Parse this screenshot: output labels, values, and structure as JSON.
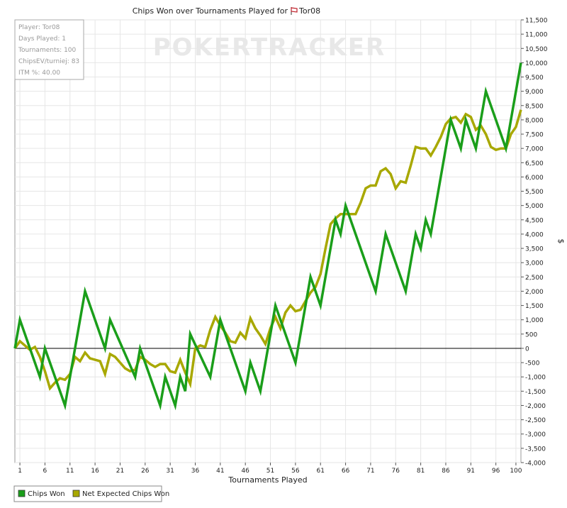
{
  "chart_data": {
    "type": "line",
    "title": "Chips Won over Tournaments Played for",
    "title_player": "Tor08",
    "xlabel": "Tournaments Played",
    "ylabel": "$",
    "xlim": [
      0,
      100
    ],
    "ylim": [
      -4000,
      11500
    ],
    "x_ticks": [
      1,
      6,
      11,
      16,
      21,
      26,
      31,
      36,
      41,
      46,
      51,
      56,
      61,
      66,
      71,
      76,
      81,
      86,
      91,
      96,
      100
    ],
    "y_ticks": [
      -4000,
      -3500,
      -3000,
      -2500,
      -2000,
      -1500,
      -1000,
      -500,
      0,
      500,
      1000,
      1500,
      2000,
      2500,
      3000,
      3500,
      4000,
      4500,
      5000,
      5500,
      6000,
      6500,
      7000,
      7500,
      8000,
      8500,
      9000,
      9500,
      10000,
      10500,
      11000,
      11500
    ],
    "y_tick_labels": [
      "-4,000",
      "-3,500",
      "-3,000",
      "-2,500",
      "-2,000",
      "-1,500",
      "-1,000",
      "-500",
      "0",
      "500",
      "1,000",
      "1,500",
      "2,000",
      "2,500",
      "3,000",
      "3,500",
      "4,000",
      "4,500",
      "5,000",
      "5,500",
      "6,000",
      "6,500",
      "7,000",
      "7,500",
      "8,000",
      "8,500",
      "9,000",
      "9,500",
      "10,000",
      "10,500",
      "11,000",
      "11,500"
    ],
    "grid": true,
    "legend_position": "bottom-left",
    "watermark": "POKERTRACKER",
    "info_box": [
      {
        "label": "Player",
        "value": "Tor08"
      },
      {
        "label": "Days Played",
        "value": "1"
      },
      {
        "label": "Tournaments",
        "value": "100"
      },
      {
        "label": "ChipsEV/turniej",
        "value": "83"
      },
      {
        "label": "ITM %",
        "value": "40.00"
      }
    ],
    "series": [
      {
        "name": "Chips Won",
        "color": "#1a9e1a",
        "points": [
          [
            0,
            0
          ],
          [
            1,
            1000
          ],
          [
            5,
            -1000
          ],
          [
            6,
            0
          ],
          [
            10,
            -2000
          ],
          [
            14,
            2000
          ],
          [
            18,
            0
          ],
          [
            19,
            1000
          ],
          [
            24,
            -1000
          ],
          [
            25,
            0
          ],
          [
            29,
            -2000
          ],
          [
            30,
            -1000
          ],
          [
            32,
            -2000
          ],
          [
            33,
            -1000
          ],
          [
            34,
            -1500
          ],
          [
            35,
            500
          ],
          [
            39,
            -1000
          ],
          [
            41,
            1000
          ],
          [
            46,
            -1500
          ],
          [
            47,
            -500
          ],
          [
            49,
            -1500
          ],
          [
            52,
            1500
          ],
          [
            56,
            -500
          ],
          [
            59,
            2500
          ],
          [
            61,
            1500
          ],
          [
            64,
            4500
          ],
          [
            65,
            4000
          ],
          [
            66,
            5000
          ],
          [
            72,
            2000
          ],
          [
            74,
            4000
          ],
          [
            78,
            2000
          ],
          [
            80,
            4000
          ],
          [
            81,
            3500
          ],
          [
            82,
            4500
          ],
          [
            83,
            4000
          ],
          [
            87,
            8000
          ],
          [
            89,
            7000
          ],
          [
            90,
            8000
          ],
          [
            92,
            7000
          ],
          [
            94,
            9000
          ],
          [
            98,
            7000
          ],
          [
            101,
            10000
          ]
        ]
      },
      {
        "name": "Net Expected Chips Won",
        "color": "#a8a800",
        "points": [
          [
            0,
            0
          ],
          [
            1,
            250
          ],
          [
            2,
            100
          ],
          [
            3,
            -50
          ],
          [
            4,
            50
          ],
          [
            5,
            -300
          ],
          [
            6,
            -800
          ],
          [
            7,
            -1400
          ],
          [
            8,
            -1200
          ],
          [
            9,
            -1050
          ],
          [
            10,
            -1100
          ],
          [
            11,
            -900
          ],
          [
            12,
            -300
          ],
          [
            13,
            -450
          ],
          [
            14,
            -150
          ],
          [
            15,
            -350
          ],
          [
            16,
            -400
          ],
          [
            17,
            -450
          ],
          [
            18,
            -900
          ],
          [
            19,
            -200
          ],
          [
            20,
            -300
          ],
          [
            21,
            -500
          ],
          [
            22,
            -700
          ],
          [
            23,
            -800
          ],
          [
            24,
            -750
          ],
          [
            25,
            -300
          ],
          [
            26,
            -400
          ],
          [
            27,
            -550
          ],
          [
            28,
            -650
          ],
          [
            29,
            -550
          ],
          [
            30,
            -550
          ],
          [
            31,
            -800
          ],
          [
            32,
            -850
          ],
          [
            33,
            -400
          ],
          [
            34,
            -850
          ],
          [
            35,
            -1250
          ],
          [
            36,
            0
          ],
          [
            37,
            100
          ],
          [
            38,
            50
          ],
          [
            39,
            650
          ],
          [
            40,
            1100
          ],
          [
            41,
            800
          ],
          [
            42,
            550
          ],
          [
            43,
            250
          ],
          [
            44,
            200
          ],
          [
            45,
            550
          ],
          [
            46,
            350
          ],
          [
            47,
            1050
          ],
          [
            48,
            700
          ],
          [
            49,
            450
          ],
          [
            50,
            150
          ],
          [
            51,
            700
          ],
          [
            52,
            1100
          ],
          [
            53,
            700
          ],
          [
            54,
            1250
          ],
          [
            55,
            1500
          ],
          [
            56,
            1300
          ],
          [
            57,
            1350
          ],
          [
            58,
            1650
          ],
          [
            59,
            1950
          ],
          [
            60,
            2150
          ],
          [
            61,
            2600
          ],
          [
            62,
            3500
          ],
          [
            63,
            4350
          ],
          [
            64,
            4550
          ],
          [
            65,
            4700
          ],
          [
            66,
            4700
          ],
          [
            67,
            4700
          ],
          [
            68,
            4700
          ],
          [
            69,
            5100
          ],
          [
            70,
            5600
          ],
          [
            71,
            5700
          ],
          [
            72,
            5700
          ],
          [
            73,
            6200
          ],
          [
            74,
            6300
          ],
          [
            75,
            6100
          ],
          [
            76,
            5600
          ],
          [
            77,
            5850
          ],
          [
            78,
            5800
          ],
          [
            79,
            6400
          ],
          [
            80,
            7050
          ],
          [
            81,
            7000
          ],
          [
            82,
            7000
          ],
          [
            83,
            6750
          ],
          [
            84,
            7050
          ],
          [
            85,
            7400
          ],
          [
            86,
            7850
          ],
          [
            87,
            8050
          ],
          [
            88,
            8100
          ],
          [
            89,
            7900
          ],
          [
            90,
            8200
          ],
          [
            91,
            8100
          ],
          [
            92,
            7650
          ],
          [
            93,
            7800
          ],
          [
            94,
            7500
          ],
          [
            95,
            7050
          ],
          [
            96,
            6950
          ],
          [
            97,
            7000
          ],
          [
            98,
            7000
          ],
          [
            99,
            7500
          ],
          [
            100,
            7750
          ],
          [
            101,
            8350
          ]
        ]
      }
    ]
  }
}
